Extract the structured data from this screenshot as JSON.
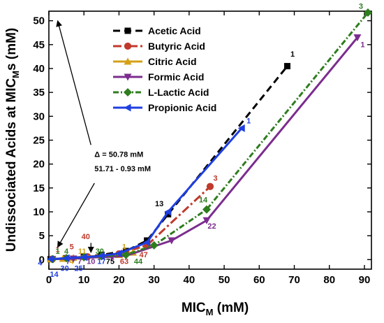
{
  "chart_data": {
    "type": "line",
    "xlabel": "MIC",
    "xlabel_sub": "M",
    "xlabel_unit": " (mM)",
    "ylabel": "Undissociated Acids at MIC",
    "ylabel_sub": "M",
    "ylabel_unit": "s (mM)",
    "xlim": [
      0,
      92
    ],
    "ylim": [
      -2,
      52
    ],
    "xticks": [
      0,
      10,
      20,
      30,
      40,
      50,
      60,
      70,
      80,
      90
    ],
    "yticks": [
      0,
      5,
      10,
      15,
      20,
      25,
      30,
      35,
      40,
      45,
      50
    ],
    "grid": false,
    "legend_position": "top-center",
    "series": [
      {
        "name": "Acetic Acid",
        "color": "#000000",
        "dash": "10,6",
        "marker": "square",
        "x": [
          0.5,
          5,
          10,
          15,
          22,
          28,
          34,
          68
        ],
        "y": [
          0.1,
          0.3,
          0.6,
          1.0,
          1.8,
          4.0,
          9.5,
          40.5
        ],
        "labels": [
          {
            "text": "1",
            "x": 69.5,
            "y": 42.5
          },
          {
            "text": "13",
            "x": 31.5,
            "y": 11.2
          },
          {
            "text": "75",
            "x": 17.5,
            "y": -0.9
          }
        ]
      },
      {
        "name": "Butyric Acid",
        "color": "#c0392b",
        "dash": "12,4,3,4",
        "marker": "circle",
        "x": [
          1,
          5,
          11,
          20,
          28,
          46
        ],
        "y": [
          0.1,
          0.3,
          0.6,
          1.2,
          3.0,
          15.3
        ],
        "labels": [
          {
            "text": "3",
            "x": 47.5,
            "y": 16.5
          },
          {
            "text": "40",
            "x": 10.5,
            "y": 4.3
          },
          {
            "text": "5",
            "x": 6.5,
            "y": 2.2
          },
          {
            "text": "1",
            "x": 2.5,
            "y": 1.6
          },
          {
            "text": "63",
            "x": 21.5,
            "y": -0.9
          },
          {
            "text": "47",
            "x": 27,
            "y": 0.5
          }
        ]
      },
      {
        "name": "Citric Acid",
        "color": "#d4a017",
        "dash": "",
        "marker": "triangle",
        "x": [
          0.5,
          4,
          7,
          10,
          15,
          20,
          24
        ],
        "y": [
          0.1,
          0.2,
          0.4,
          0.6,
          0.8,
          1.0,
          1.5
        ],
        "labels": [
          {
            "text": "1",
            "x": 21.5,
            "y": 2.2
          },
          {
            "text": "11",
            "x": 9.5,
            "y": 1.2
          },
          {
            "text": "4",
            "x": 6.5,
            "y": -0.9
          }
        ]
      },
      {
        "name": "Formic Acid",
        "color": "#7b2d8e",
        "dash": "",
        "marker": "triangle-down",
        "x": [
          1,
          7,
          10,
          18,
          22,
          35,
          45,
          88
        ],
        "y": [
          0.1,
          0.2,
          0.4,
          0.6,
          0.8,
          4.0,
          8.2,
          46.5
        ],
        "labels": [
          {
            "text": "1",
            "x": 89.5,
            "y": 44.5
          },
          {
            "text": "22",
            "x": 46.5,
            "y": 6.5
          },
          {
            "text": "10",
            "x": 12,
            "y": -0.9
          },
          {
            "text": "7",
            "x": 8.8,
            "y": -0.9
          },
          {
            "text": "7",
            "x": 5.5,
            "y": -0.9
          }
        ]
      },
      {
        "name": "L-Lactic Acid",
        "color": "#2e7d1e",
        "dash": "8,3,2,3",
        "marker": "diamond",
        "x": [
          1,
          5,
          10,
          15,
          22,
          30,
          45,
          91
        ],
        "y": [
          0.1,
          0.3,
          0.5,
          0.7,
          1.0,
          3.0,
          10.5,
          51.7
        ],
        "labels": [
          {
            "text": "3",
            "x": 89,
            "y": 52.5
          },
          {
            "text": "14",
            "x": 44,
            "y": 12.0
          },
          {
            "text": "30",
            "x": 14.5,
            "y": 1.2
          },
          {
            "text": "4",
            "x": 5,
            "y": 1.2
          },
          {
            "text": "1",
            "x": 2.5,
            "y": 1.2
          },
          {
            "text": "44",
            "x": 25.5,
            "y": -0.9
          }
        ]
      },
      {
        "name": "Propionic Acid",
        "color": "#1f3fe0",
        "dash": "",
        "marker": "triangle-left",
        "x": [
          0.5,
          5,
          10,
          15,
          20,
          28,
          34,
          55
        ],
        "y": [
          0.1,
          0.3,
          0.5,
          0.8,
          1.3,
          3.6,
          10.0,
          27.5
        ],
        "labels": [
          {
            "text": "1",
            "x": 57,
            "y": 28.5
          },
          {
            "text": "4",
            "x": -2.5,
            "y": -1.2
          },
          {
            "text": "14",
            "x": 1.5,
            "y": -3.6
          },
          {
            "text": "30",
            "x": 4.5,
            "y": -2.4
          },
          {
            "text": "25",
            "x": 8.5,
            "y": -2.4
          },
          {
            "text": "17",
            "x": 15,
            "y": -0.9
          }
        ]
      }
    ],
    "annotations": {
      "delta_text": "Δ = 50.78 mM",
      "range_text": "51.71 - 0.93 mM",
      "arrow_up": {
        "from": [
          12,
          24
        ],
        "to": [
          2.5,
          50
        ]
      },
      "arrow_down": {
        "from": [
          13,
          16
        ],
        "to": [
          2.5,
          2.6
        ]
      },
      "small_arrow": {
        "from": [
          12,
          3.5
        ],
        "to": [
          12,
          1.5
        ]
      }
    }
  }
}
